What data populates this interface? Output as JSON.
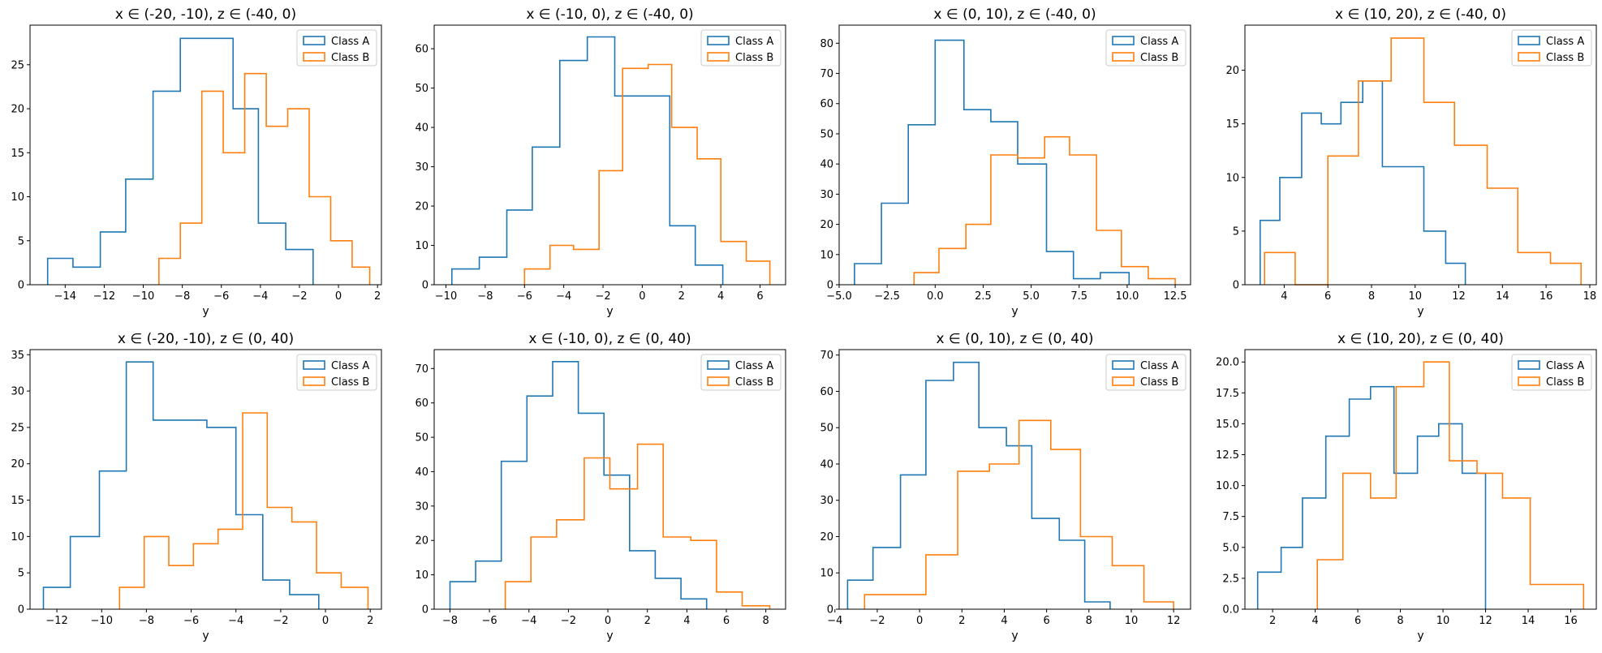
{
  "figure": {
    "background": "#ffffff"
  },
  "colors": {
    "Class A": "#1f77b4",
    "Class B": "#ff7f0e"
  },
  "chart_data": [
    {
      "type": "histogram",
      "title": "x ∈ (-20, -10), z ∈ (-40, 0)",
      "xlabel": "y",
      "xlim": [
        -15.8,
        2.2
      ],
      "ylim": [
        0,
        29.5
      ],
      "xticks": [
        -14,
        -12,
        -10,
        -8,
        -6,
        -4,
        -2,
        0,
        2
      ],
      "yticks": [
        0,
        5,
        10,
        15,
        20,
        25
      ],
      "legend": "top-right",
      "series": [
        {
          "name": "Class A",
          "edges": [
            -14.9,
            -13.6,
            -12.2,
            -10.9,
            -9.5,
            -8.1,
            -6.8,
            -5.4,
            -4.1,
            -2.7,
            -1.3
          ],
          "counts": [
            3,
            2,
            6,
            12,
            22,
            28,
            28,
            20,
            7,
            4
          ]
        },
        {
          "name": "Class B",
          "edges": [
            -9.2,
            -8.1,
            -7.0,
            -5.9,
            -4.8,
            -3.7,
            -2.6,
            -1.5,
            -0.4,
            0.7,
            1.6
          ],
          "counts": [
            3,
            7,
            22,
            15,
            24,
            18,
            20,
            10,
            5,
            2
          ]
        }
      ]
    },
    {
      "type": "histogram",
      "title": "x ∈ (-10, 0), z ∈ (-40, 0)",
      "xlabel": "y",
      "xlim": [
        -10.6,
        7.3
      ],
      "ylim": [
        0,
        66
      ],
      "xticks": [
        -10,
        -8,
        -6,
        -4,
        -2,
        0,
        2,
        4,
        6
      ],
      "yticks": [
        0,
        10,
        20,
        30,
        40,
        50,
        60
      ],
      "legend": "top-right",
      "series": [
        {
          "name": "Class A",
          "edges": [
            -9.7,
            -8.3,
            -6.9,
            -5.6,
            -4.2,
            -2.8,
            -1.4,
            0.0,
            1.4,
            2.7,
            4.1
          ],
          "counts": [
            4,
            7,
            19,
            35,
            57,
            63,
            48,
            48,
            15,
            5
          ]
        },
        {
          "name": "Class B",
          "edges": [
            -6.0,
            -4.7,
            -3.5,
            -2.2,
            -1.0,
            0.3,
            1.5,
            2.8,
            4.0,
            5.3,
            6.5
          ],
          "counts": [
            4,
            10,
            9,
            29,
            55,
            56,
            40,
            32,
            11,
            6
          ]
        }
      ]
    },
    {
      "type": "histogram",
      "title": "x ∈ (0, 10), z ∈ (-40, 0)",
      "xlabel": "y",
      "xlim": [
        -5.0,
        13.3
      ],
      "ylim": [
        0,
        86
      ],
      "xticks": [
        -5.0,
        -2.5,
        0.0,
        2.5,
        5.0,
        7.5,
        10.0,
        12.5
      ],
      "yticks": [
        0,
        10,
        20,
        30,
        40,
        50,
        60,
        70,
        80
      ],
      "legend": "top-right",
      "series": [
        {
          "name": "Class A",
          "edges": [
            -4.2,
            -2.8,
            -1.4,
            0.0,
            1.5,
            2.9,
            4.3,
            5.8,
            7.2,
            8.6,
            10.1
          ],
          "counts": [
            7,
            27,
            53,
            81,
            58,
            54,
            40,
            11,
            2,
            4
          ]
        },
        {
          "name": "Class B",
          "edges": [
            -1.1,
            0.2,
            1.6,
            2.9,
            4.3,
            5.7,
            7.0,
            8.4,
            9.7,
            11.1,
            12.5
          ],
          "counts": [
            4,
            12,
            20,
            43,
            42,
            49,
            43,
            18,
            6,
            2
          ]
        }
      ]
    },
    {
      "type": "histogram",
      "title": "x ∈ (10, 20), z ∈ (-40, 0)",
      "xlabel": "y",
      "xlim": [
        2.2,
        18.3
      ],
      "ylim": [
        0,
        24.2
      ],
      "xticks": [
        4,
        6,
        8,
        10,
        12,
        14,
        16,
        18
      ],
      "yticks": [
        0,
        5,
        10,
        15,
        20
      ],
      "legend": "top-right",
      "series": [
        {
          "name": "Class A",
          "edges": [
            2.9,
            3.8,
            4.8,
            5.7,
            6.6,
            7.6,
            8.5,
            9.5,
            10.4,
            11.4,
            12.3
          ],
          "counts": [
            6,
            10,
            16,
            15,
            17,
            19,
            11,
            11,
            5,
            2
          ]
        },
        {
          "name": "Class B",
          "edges": [
            3.1,
            4.5,
            6.0,
            7.4,
            8.9,
            10.4,
            11.8,
            13.3,
            14.7,
            16.2,
            17.6
          ],
          "counts": [
            3,
            0,
            12,
            19,
            23,
            17,
            13,
            9,
            3,
            2
          ]
        }
      ]
    },
    {
      "type": "histogram",
      "title": "x ∈ (-20, -10), z ∈ (0, 40)",
      "xlabel": "y",
      "xlim": [
        -13.2,
        2.5
      ],
      "ylim": [
        0,
        35.7
      ],
      "xticks": [
        -12,
        -10,
        -8,
        -6,
        -4,
        -2,
        0,
        2
      ],
      "yticks": [
        0,
        5,
        10,
        15,
        20,
        25,
        30,
        35
      ],
      "legend": "top-right",
      "series": [
        {
          "name": "Class A",
          "edges": [
            -12.6,
            -11.4,
            -10.1,
            -8.9,
            -7.7,
            -6.5,
            -5.3,
            -4.0,
            -2.8,
            -1.6,
            -0.3
          ],
          "counts": [
            3,
            10,
            19,
            34,
            26,
            26,
            25,
            13,
            4,
            2
          ]
        },
        {
          "name": "Class B",
          "edges": [
            -9.2,
            -8.1,
            -7.0,
            -5.9,
            -4.8,
            -3.7,
            -2.6,
            -1.5,
            -0.4,
            0.7,
            1.9
          ],
          "counts": [
            3,
            10,
            6,
            9,
            11,
            27,
            14,
            12,
            5,
            3
          ]
        }
      ]
    },
    {
      "type": "histogram",
      "title": "x ∈ (-10, 0), z ∈ (0, 40)",
      "xlabel": "y",
      "xlim": [
        -8.8,
        9.0
      ],
      "ylim": [
        0,
        75.5
      ],
      "xticks": [
        -8,
        -6,
        -4,
        -2,
        0,
        2,
        4,
        6,
        8
      ],
      "yticks": [
        0,
        10,
        20,
        30,
        40,
        50,
        60,
        70
      ],
      "legend": "top-right",
      "series": [
        {
          "name": "Class A",
          "edges": [
            -8.0,
            -6.7,
            -5.4,
            -4.1,
            -2.8,
            -1.5,
            -0.2,
            1.1,
            2.4,
            3.7,
            5.0
          ],
          "counts": [
            8,
            14,
            43,
            62,
            72,
            57,
            39,
            17,
            9,
            3
          ]
        },
        {
          "name": "Class B",
          "edges": [
            -5.2,
            -3.9,
            -2.6,
            -1.2,
            0.1,
            1.5,
            2.8,
            4.2,
            5.5,
            6.8,
            8.2
          ],
          "counts": [
            8,
            21,
            26,
            44,
            35,
            48,
            21,
            20,
            5,
            1
          ]
        }
      ]
    },
    {
      "type": "histogram",
      "title": "x ∈ (0, 10), z ∈ (0, 40)",
      "xlabel": "y",
      "xlim": [
        -3.8,
        12.8
      ],
      "ylim": [
        0,
        71.5
      ],
      "xticks": [
        -4,
        -2,
        0,
        2,
        4,
        6,
        8,
        10,
        12
      ],
      "yticks": [
        0,
        10,
        20,
        30,
        40,
        50,
        60,
        70
      ],
      "legend": "top-right",
      "series": [
        {
          "name": "Class A",
          "edges": [
            -3.4,
            -2.2,
            -0.9,
            0.3,
            1.6,
            2.8,
            4.1,
            5.3,
            6.6,
            7.8,
            9.0
          ],
          "counts": [
            8,
            17,
            37,
            63,
            68,
            50,
            45,
            25,
            19,
            2
          ]
        },
        {
          "name": "Class B",
          "edges": [
            -2.6,
            -1.1,
            0.3,
            1.8,
            3.3,
            4.7,
            6.2,
            7.6,
            9.1,
            10.6,
            12.0
          ],
          "counts": [
            4,
            4,
            15,
            38,
            40,
            52,
            44,
            20,
            12,
            2
          ]
        }
      ]
    },
    {
      "type": "histogram",
      "title": "x ∈ (10, 20), z ∈ (0, 40)",
      "xlabel": "y",
      "xlim": [
        0.7,
        17.2
      ],
      "ylim": [
        0,
        21.0
      ],
      "xticks": [
        2,
        4,
        6,
        8,
        10,
        12,
        14,
        16
      ],
      "yticks": [
        0.0,
        2.5,
        5.0,
        7.5,
        10.0,
        12.5,
        15.0,
        17.5,
        20.0
      ],
      "legend": "top-right",
      "series": [
        {
          "name": "Class A",
          "edges": [
            1.3,
            2.4,
            3.4,
            4.5,
            5.6,
            6.6,
            7.7,
            8.8,
            9.8,
            10.9,
            12.0
          ],
          "counts": [
            3,
            5,
            9,
            14,
            17,
            18,
            11,
            14,
            15,
            11
          ]
        },
        {
          "name": "Class B",
          "edges": [
            4.1,
            5.3,
            6.6,
            7.8,
            9.1,
            10.3,
            11.6,
            12.8,
            14.1,
            15.3,
            16.6
          ],
          "counts": [
            4,
            11,
            9,
            18,
            20,
            12,
            11,
            9,
            2,
            2
          ]
        }
      ]
    }
  ]
}
